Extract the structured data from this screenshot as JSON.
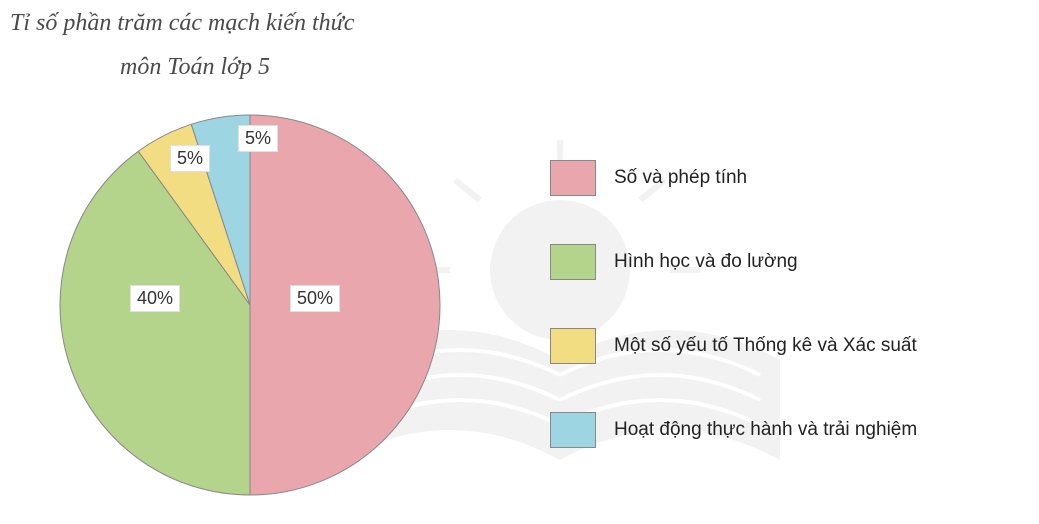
{
  "chart": {
    "type": "pie",
    "title_line1": "Tỉ số phần trăm các mạch kiến thức",
    "title_line2": "môn Toán lớp 5",
    "title_fontsize": 24,
    "title_color": "#4a4a4a",
    "background_color": "#ffffff",
    "pie_radius": 190,
    "pie_outline_color": "#888888",
    "slices": [
      {
        "label": "Số và phép tính",
        "value": 50,
        "display": "50%",
        "color": "#e9a6ad"
      },
      {
        "label": "Hình học và đo lường",
        "value": 40,
        "display": "40%",
        "color": "#b4d38b"
      },
      {
        "label": "Một số yếu tố Thống kê và Xác suất",
        "value": 5,
        "display": "5%",
        "color": "#f3dd82"
      },
      {
        "label": "Hoạt động thực hành và trải nghiệm",
        "value": 5,
        "display": "5%",
        "color": "#9dd6e2"
      }
    ],
    "start_angle_deg": -90,
    "label_fontsize": 18,
    "label_bg": "#ffffff",
    "label_border": "#e0e0e0",
    "legend": {
      "swatch_border": "#888888",
      "text_fontsize": 19,
      "text_color": "#222222",
      "item_gap": 48
    }
  }
}
